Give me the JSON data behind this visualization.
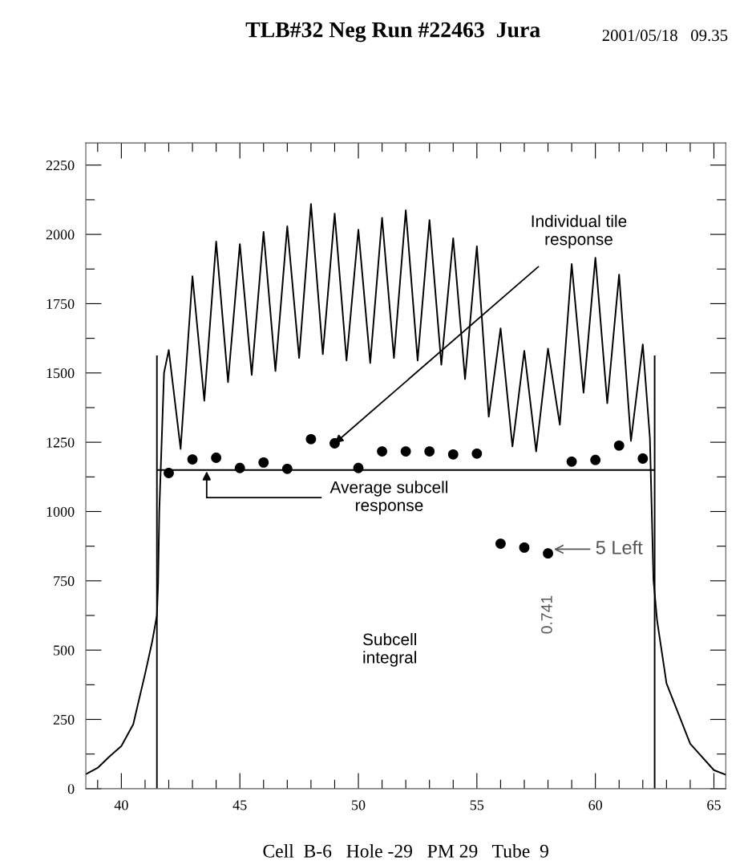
{
  "chart_data": {
    "type": "line",
    "title": "TLB#32 Neg Run #22463  Jura",
    "xlabel": "Cell  B-6   Hole -29   PM 29   Tube  9",
    "xlim": [
      38.5,
      65.5
    ],
    "ylim": [
      0,
      2330
    ],
    "xticks": [
      {
        "value": 39,
        "label": null
      },
      40,
      {
        "value": 41,
        "label": null
      },
      {
        "value": 42,
        "label": null
      },
      {
        "value": 43,
        "label": null
      },
      {
        "value": 44,
        "label": null
      },
      45,
      {
        "value": 46,
        "label": null
      },
      {
        "value": 47,
        "label": null
      },
      {
        "value": 48,
        "label": null
      },
      {
        "value": 49,
        "label": null
      },
      50,
      {
        "value": 51,
        "label": null
      },
      {
        "value": 52,
        "label": null
      },
      {
        "value": 53,
        "label": null
      },
      {
        "value": 54,
        "label": null
      },
      55,
      {
        "value": 56,
        "label": null
      },
      {
        "value": 57,
        "label": null
      },
      {
        "value": 58,
        "label": null
      },
      {
        "value": 59,
        "label": null
      },
      60,
      {
        "value": 61,
        "label": null
      },
      {
        "value": 62,
        "label": null
      },
      {
        "value": 63,
        "label": null
      },
      {
        "value": 64,
        "label": null
      },
      65
    ],
    "yticks": [
      0,
      {
        "value": 125,
        "label": null
      },
      250,
      {
        "value": 375,
        "label": null
      },
      500,
      {
        "value": 625,
        "label": null
      },
      750,
      {
        "value": 875,
        "label": null
      },
      1000,
      {
        "value": 1125,
        "label": null
      },
      1250,
      {
        "value": 1375,
        "label": null
      },
      1500,
      {
        "value": 1625,
        "label": null
      },
      1750,
      {
        "value": 1875,
        "label": null
      },
      2000,
      {
        "value": 2125,
        "label": null
      },
      2250
    ],
    "grid": false,
    "legend": false,
    "series": [
      {
        "color": "#000000",
        "x": [
          38.5,
          39,
          39.5,
          40,
          40.5,
          41,
          41.3,
          41.5,
          41.55,
          41.6,
          41.7,
          41.8,
          42,
          42.5,
          43,
          43.5,
          44,
          44.5,
          45,
          45.5,
          46,
          46.5,
          47,
          47.5,
          48,
          48.5,
          49,
          49.5,
          50,
          50.5,
          51,
          51.5,
          52,
          52.5,
          53,
          53.5,
          54,
          54.5,
          55,
          55.5,
          56,
          56.5,
          57,
          57.5,
          58,
          58.5,
          59,
          59.5,
          60,
          60.5,
          61,
          61.5,
          62,
          62.3,
          62.45,
          62.6,
          63,
          64,
          65,
          65.5
        ],
        "values": [
          52,
          75,
          116,
          154,
          232,
          414,
          530,
          626,
          742,
          1000,
          1250,
          1500,
          1583,
          1226,
          1849,
          1400,
          1974,
          1467,
          1965,
          1493,
          2009,
          1507,
          2029,
          1554,
          2110,
          1568,
          2075,
          1545,
          2017,
          1536,
          2060,
          1554,
          2087,
          1545,
          2052,
          1530,
          1986,
          1478,
          1957,
          1342,
          1661,
          1235,
          1580,
          1217,
          1588,
          1313,
          1893,
          1429,
          1916,
          1391,
          1855,
          1255,
          1603,
          1264,
          754,
          609,
          380,
          162,
          67,
          50
        ]
      },
      {
        "color": "#000000",
        "x": [
          41.5,
          41.5,
          41.5,
          62.5,
          62.5,
          62.5
        ],
        "values": [
          1560,
          0,
          1150,
          1150,
          0,
          1560
        ]
      },
      {
        "type": "scatter",
        "color": "#000000",
        "marker": "circle",
        "x": [
          42,
          43,
          44,
          45,
          46,
          47,
          48,
          49,
          50,
          51,
          52,
          53,
          54,
          55,
          56,
          57,
          58,
          59,
          60,
          61,
          62
        ],
        "values": [
          1139,
          1188,
          1194,
          1157,
          1177,
          1154,
          1261,
          1246,
          1157,
          1217,
          1217,
          1217,
          1206,
          1209,
          884,
          870,
          849,
          1180,
          1186,
          1238,
          1191
        ]
      }
    ],
    "annotations": [
      "2001/05/18   09.35",
      {
        "text": "Individual tile\nresponse",
        "x": 49,
        "y": 1246
      },
      {
        "text": "Average subcell\nresponse",
        "x": 43.6,
        "y": 1150
      },
      {
        "text": "5 Left",
        "x": 58,
        "y": 849
      },
      {
        "text": "0.741",
        "x": 58,
        "y": 849
      },
      "Subcell\nintegral"
    ]
  }
}
